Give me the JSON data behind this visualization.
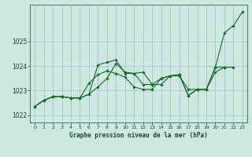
{
  "xlabel": "Graphe pression niveau de la mer (hPa)",
  "background_color": "#cce8e0",
  "grid_color": "#aacec6",
  "line_color": "#1a6b2a",
  "spine_color": "#4a8a6a",
  "ylim": [
    1021.7,
    1026.5
  ],
  "xlim": [
    -0.5,
    23.5
  ],
  "yticks": [
    1022,
    1023,
    1024,
    1025
  ],
  "xticks": [
    0,
    1,
    2,
    3,
    4,
    5,
    6,
    7,
    8,
    9,
    10,
    11,
    12,
    13,
    14,
    15,
    16,
    17,
    18,
    19,
    20,
    21,
    22,
    23
  ],
  "series": [
    [
      1022.35,
      1022.6,
      1022.75,
      1022.75,
      1022.7,
      1022.7,
      1022.85,
      1023.15,
      1023.5,
      1024.1,
      1023.75,
      1023.7,
      1023.75,
      1023.25,
      1023.5,
      1023.6,
      1023.65,
      1022.8,
      1023.05,
      1023.05,
      1023.95,
      1025.35,
      1025.65,
      1026.2
    ],
    [
      1022.35,
      1022.6,
      1022.75,
      1022.75,
      1022.7,
      1022.7,
      1022.85,
      1024.05,
      1024.15,
      1024.25,
      1023.7,
      1023.7,
      1023.25,
      1023.25,
      1023.25,
      1023.6,
      1023.6,
      1023.05,
      1023.05,
      1023.05,
      1023.95,
      1023.95,
      1023.95,
      null
    ],
    [
      1022.35,
      1022.6,
      1022.75,
      1022.75,
      1022.7,
      1022.7,
      1023.3,
      1023.65,
      1023.8,
      1023.7,
      1023.55,
      1023.15,
      1023.05,
      1023.05,
      1023.5,
      1023.6,
      1023.65,
      1022.8,
      1023.05,
      1023.05,
      1023.75,
      1023.95,
      null,
      null
    ]
  ]
}
